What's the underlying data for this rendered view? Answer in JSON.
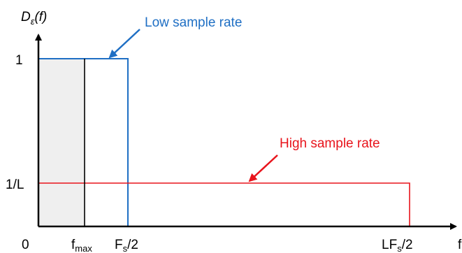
{
  "y_axis": {
    "label": "D",
    "label_sub": "ε",
    "label_suffix": "(f)",
    "tick_1": "1",
    "tick_1_over_L": "1/L",
    "tick_0": "0"
  },
  "x_axis": {
    "label": "f",
    "fmax": {
      "base": "f",
      "sub": "max"
    },
    "fs_half": {
      "base": "F",
      "sub": "s",
      "suffix": "/2"
    },
    "lfs_half": {
      "base": "LF",
      "sub": "s",
      "suffix": "/2"
    }
  },
  "annotations": {
    "low": "Low sample rate",
    "high": "High sample rate"
  },
  "colors": {
    "low": "#1f6fc4",
    "high": "#e8141c",
    "shade": "#efefef",
    "axis": "#000000"
  }
}
